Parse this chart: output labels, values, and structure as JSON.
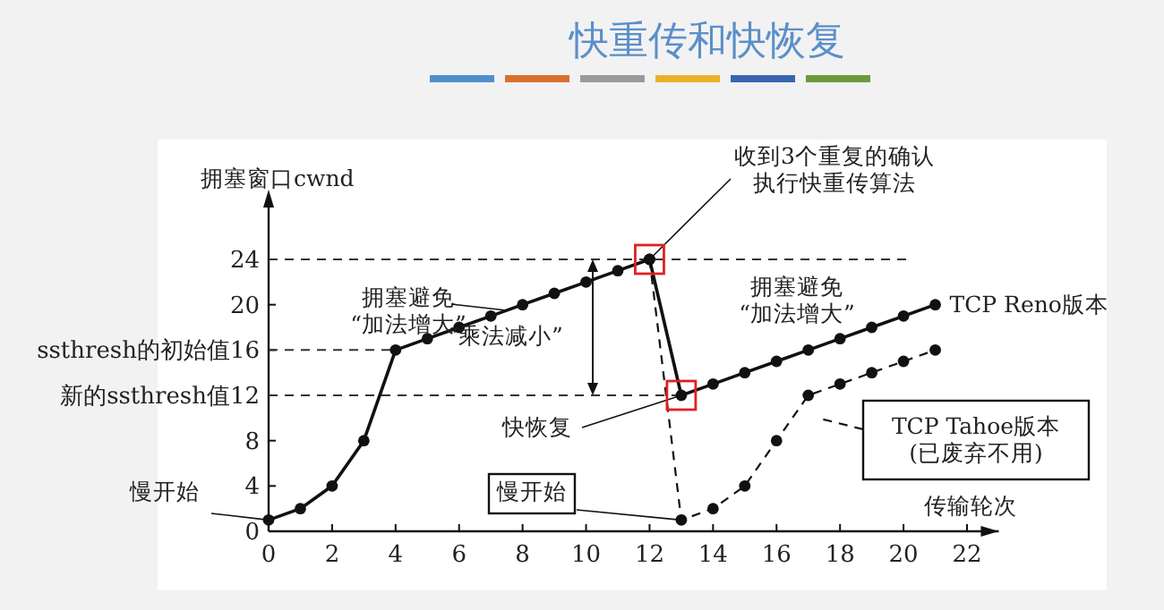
{
  "chart_data": {
    "type": "line",
    "title": "快重传和快恢复",
    "ylabel": "拥塞窗口cwnd",
    "xlabel": "传输轮次",
    "xlim": [
      0,
      23
    ],
    "ylim": [
      0,
      24
    ],
    "xticks": [
      0,
      2,
      4,
      6,
      8,
      10,
      12,
      14,
      16,
      18,
      20,
      22
    ],
    "yticks": [
      0,
      4,
      8,
      {
        "value": 12,
        "label": "新的ssthresh值12"
      },
      {
        "value": 16,
        "label": "ssthresh的初始值16"
      },
      20,
      24
    ],
    "marker": "circle",
    "series": [
      {
        "name": "TCP Reno版本",
        "color": "#111111",
        "line_style": "solid",
        "x": [
          0,
          1,
          2,
          3,
          4,
          5,
          6,
          7,
          8,
          9,
          10,
          11,
          12,
          13,
          14,
          15,
          16,
          17,
          18,
          19,
          20,
          21
        ],
        "values": [
          1,
          2,
          4,
          8,
          16,
          17,
          18,
          19,
          20,
          21,
          22,
          23,
          24,
          12,
          13,
          14,
          15,
          16,
          17,
          18,
          19,
          20
        ]
      },
      {
        "name": "TCP Tahoe版本(已废弃不用)",
        "color": "#111111",
        "line_style": "dashed",
        "x": [
          12,
          13,
          14,
          15,
          16,
          17,
          18,
          19,
          20,
          21
        ],
        "values": [
          24,
          1,
          2,
          4,
          8,
          12,
          13,
          14,
          15,
          16
        ]
      }
    ],
    "ref_lines": [
      {
        "axis": "y",
        "value": 24,
        "color": "#333333",
        "line_style": "dashed"
      },
      {
        "axis": "y",
        "value": 16,
        "color": "#333333",
        "line_style": "dashed"
      },
      {
        "axis": "y",
        "value": 12,
        "color": "#333333",
        "line_style": "dashed"
      }
    ],
    "annotations": [
      {
        "text": "慢开始",
        "x": 0,
        "y": 1
      },
      {
        "text": "拥塞避免“加法增大”",
        "x": 7.5,
        "y": 19.5
      },
      "“乘法减小”",
      {
        "text": "收到3个重复的确认执行快重传算法",
        "x": 12,
        "y": 24
      },
      {
        "text": "快恢复",
        "x": 13,
        "y": 12
      },
      "拥塞避免“加法增大”",
      {
        "text": "慢开始",
        "x": 13,
        "y": 1
      }
    ]
  }
}
